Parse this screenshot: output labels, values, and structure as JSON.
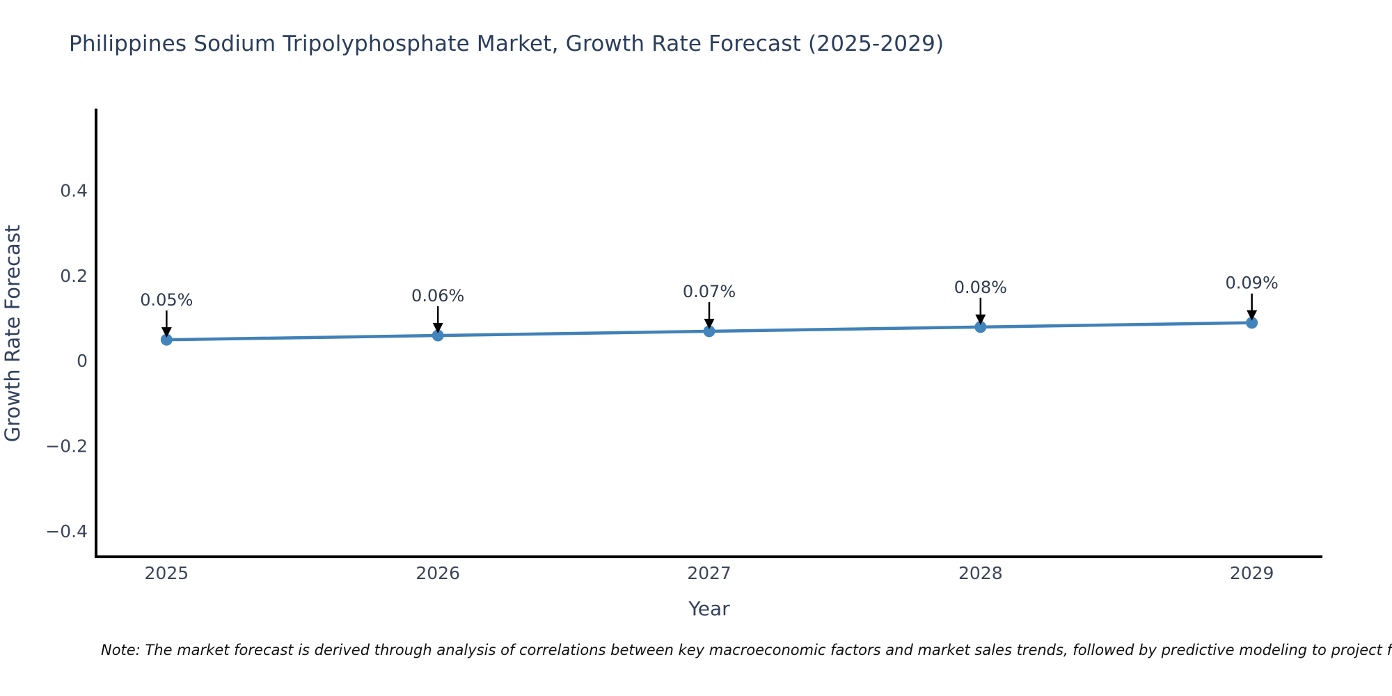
{
  "title": "Philippines Sodium Tripolyphosphate Market, Growth Rate Forecast (2025-2029)",
  "note": "Note: The market forecast is derived through analysis of correlations between key macroeconomic factors and market sales trends, followed by predictive modeling to project future sales.",
  "chart_data": {
    "type": "line",
    "title": "Philippines Sodium Tripolyphosphate Market, Growth Rate Forecast (2025-2029)",
    "xlabel": "Year",
    "ylabel": "Growth Rate Forecast",
    "categories": [
      "2025",
      "2026",
      "2027",
      "2028",
      "2029"
    ],
    "values": [
      0.05,
      0.06,
      0.07,
      0.08,
      0.09
    ],
    "point_labels": [
      "0.05%",
      "0.06%",
      "0.07%",
      "0.08%",
      "0.09%"
    ],
    "y_ticks": [
      -0.4,
      -0.2,
      0,
      0.2,
      0.4
    ],
    "y_tick_labels": [
      "−0.4",
      "−0.2",
      "0",
      "0.2",
      "0.4"
    ],
    "xlim": [
      -0.26,
      4.26
    ],
    "ylim": [
      -0.46,
      0.59
    ],
    "grid": false,
    "legend": "none",
    "marker_style": "circle",
    "annotation_arrow": "down",
    "colors": {
      "line": "#4181b8",
      "marker": "#4285bc",
      "arrow": "#000000",
      "axis_spine": "#000000",
      "title_text": "#2b3d5c",
      "axis_label_text": "#33415c",
      "tick_text": "#3c4557",
      "annotation_text": "#2f3b4e",
      "note_text": "#111111",
      "background": "#ffffff"
    }
  }
}
